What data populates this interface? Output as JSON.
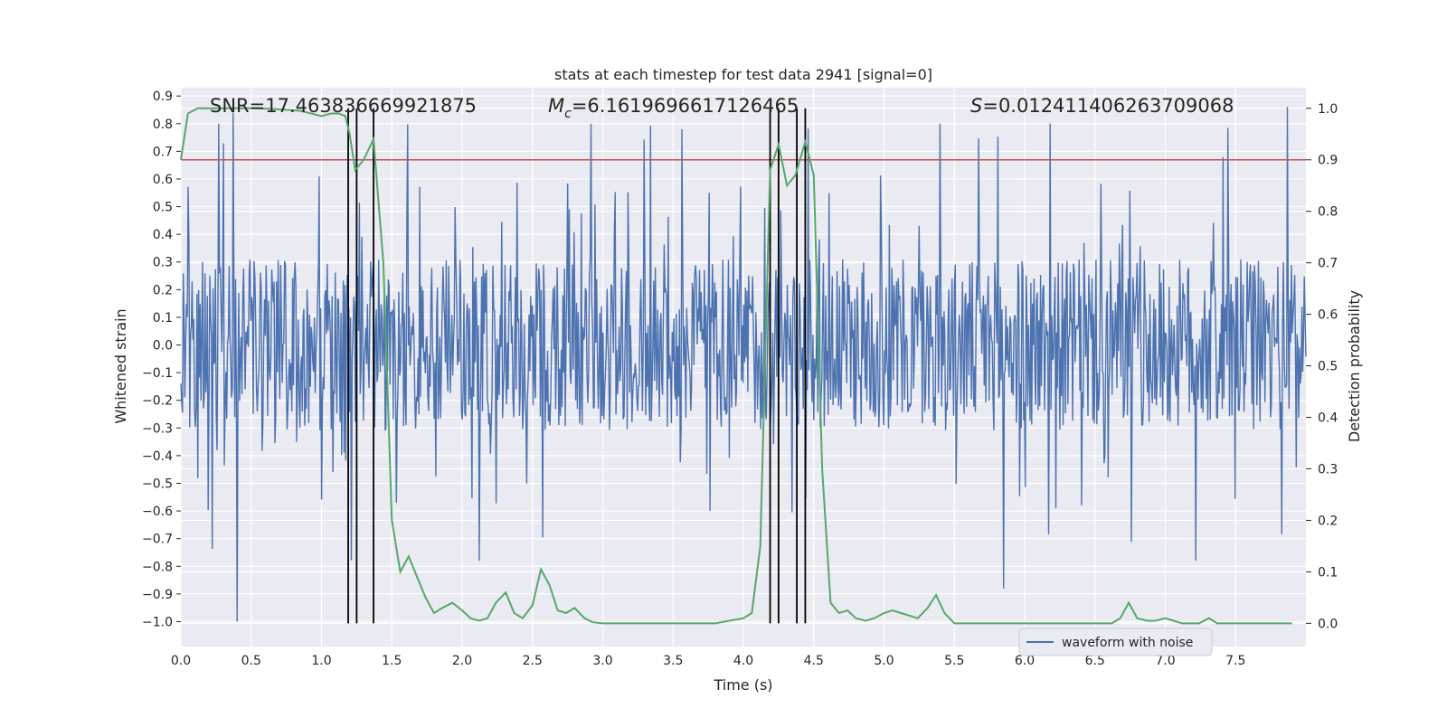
{
  "chart_data": {
    "type": "line",
    "title": "stats at each timestep for test data 2941 [signal=0]",
    "xlabel": "Time (s)",
    "ylabel": "Whitened strain",
    "y2label": "Detection probability",
    "xlim": [
      0.0,
      8.0
    ],
    "ylim": [
      -1.09,
      0.93
    ],
    "y2lim": [
      -0.045,
      1.04
    ],
    "xticks": [
      "0.0",
      "0.5",
      "1.0",
      "1.5",
      "2.0",
      "2.5",
      "3.0",
      "3.5",
      "4.0",
      "4.5",
      "5.0",
      "5.5",
      "6.0",
      "6.5",
      "7.0",
      "7.5"
    ],
    "yticks": [
      "0.9",
      "0.8",
      "0.7",
      "0.6",
      "0.5",
      "0.4",
      "0.3",
      "0.2",
      "0.1",
      "0.0",
      "−0.1",
      "−0.2",
      "−0.3",
      "−0.4",
      "−0.5",
      "−0.6",
      "−0.7",
      "−0.8",
      "−0.9",
      "−1.0"
    ],
    "y2ticks": [
      "1.0",
      "0.9",
      "0.8",
      "0.7",
      "0.6",
      "0.5",
      "0.4",
      "0.3",
      "0.2",
      "0.1",
      "0.0"
    ],
    "annotations": {
      "snr": "SNR=17.463836669921875",
      "mc_symbol": "M",
      "mc_sub": "c",
      "mc_value": "=6.1619696617126465",
      "s_symbol": "S",
      "s_value": "=0.012411406263709068"
    },
    "threshold": 0.9,
    "event_lines_x": [
      1.19,
      1.25,
      1.37,
      4.19,
      4.25,
      4.38,
      4.44
    ],
    "series": [
      {
        "name": "waveform with noise",
        "axis": "left",
        "color": "#4c72b0",
        "description": "whitened strain noise, dense band within about ±0.3 with spikes up to about ±0.85",
        "n_samples": 1400,
        "core_amplitude": 0.31,
        "spikes": [
          {
            "x": 0.4,
            "y": -1.0
          },
          {
            "x": 0.27,
            "y": 0.8
          },
          {
            "x": 0.37,
            "y": 0.84
          },
          {
            "x": 2.12,
            "y": -0.78
          },
          {
            "x": 5.85,
            "y": -0.88
          },
          {
            "x": 6.18,
            "y": 0.8
          },
          {
            "x": 7.87,
            "y": 0.86
          },
          {
            "x": 3.56,
            "y": 0.78
          },
          {
            "x": 5.4,
            "y": 0.8
          }
        ]
      },
      {
        "name": "detection probability",
        "axis": "right",
        "color": "#55a868",
        "x": [
          0.0,
          0.05,
          0.12,
          0.2,
          0.3,
          0.4,
          0.55,
          0.7,
          0.85,
          1.0,
          1.07,
          1.12,
          1.17,
          1.2,
          1.24,
          1.3,
          1.37,
          1.44,
          1.5,
          1.56,
          1.62,
          1.68,
          1.74,
          1.8,
          1.86,
          1.93,
          2.0,
          2.06,
          2.12,
          2.18,
          2.24,
          2.31,
          2.37,
          2.43,
          2.5,
          2.56,
          2.62,
          2.68,
          2.74,
          2.8,
          2.87,
          2.93,
          3.0,
          3.2,
          3.4,
          3.6,
          3.8,
          3.9,
          4.0,
          4.06,
          4.12,
          4.19,
          4.25,
          4.31,
          4.37,
          4.44,
          4.5,
          4.56,
          4.62,
          4.68,
          4.74,
          4.8,
          4.87,
          4.93,
          5.0,
          5.06,
          5.12,
          5.18,
          5.24,
          5.31,
          5.37,
          5.43,
          5.5,
          5.6,
          5.8,
          6.0,
          6.2,
          6.4,
          6.55,
          6.62,
          6.68,
          6.74,
          6.8,
          6.87,
          6.93,
          7.0,
          7.06,
          7.12,
          7.18,
          7.24,
          7.31,
          7.37,
          7.43,
          7.5,
          7.6,
          7.7,
          7.8,
          7.9
        ],
        "values": [
          0.9,
          0.99,
          1.0,
          1.0,
          1.0,
          1.0,
          1.0,
          0.998,
          0.995,
          0.985,
          0.99,
          0.99,
          0.985,
          0.95,
          0.88,
          0.9,
          0.94,
          0.7,
          0.2,
          0.1,
          0.13,
          0.09,
          0.05,
          0.02,
          0.03,
          0.04,
          0.025,
          0.01,
          0.005,
          0.01,
          0.04,
          0.06,
          0.02,
          0.01,
          0.035,
          0.105,
          0.075,
          0.025,
          0.02,
          0.03,
          0.01,
          0.002,
          0.0,
          0.0,
          0.0,
          0.0,
          0.0,
          0.005,
          0.01,
          0.02,
          0.15,
          0.88,
          0.93,
          0.85,
          0.87,
          0.935,
          0.87,
          0.3,
          0.04,
          0.02,
          0.025,
          0.01,
          0.005,
          0.01,
          0.02,
          0.025,
          0.02,
          0.015,
          0.01,
          0.03,
          0.055,
          0.02,
          0.0,
          0.0,
          0.0,
          0.0,
          0.0,
          0.0,
          0.0,
          0.0,
          0.01,
          0.04,
          0.01,
          0.005,
          0.005,
          0.01,
          0.005,
          0.0,
          0.0,
          0.0,
          0.01,
          0.0,
          0.0,
          0.0,
          0.0,
          0.0,
          0.0,
          0.0
        ]
      }
    ],
    "legend": {
      "label": "waveform with noise",
      "placement": "lower-right"
    }
  },
  "colors": {
    "axes_bg": "#eaeaf2",
    "grid": "#ffffff",
    "strain": "#4c72b0",
    "probability": "#55a868",
    "threshold": "#c44e52",
    "event_line": "#000000"
  }
}
